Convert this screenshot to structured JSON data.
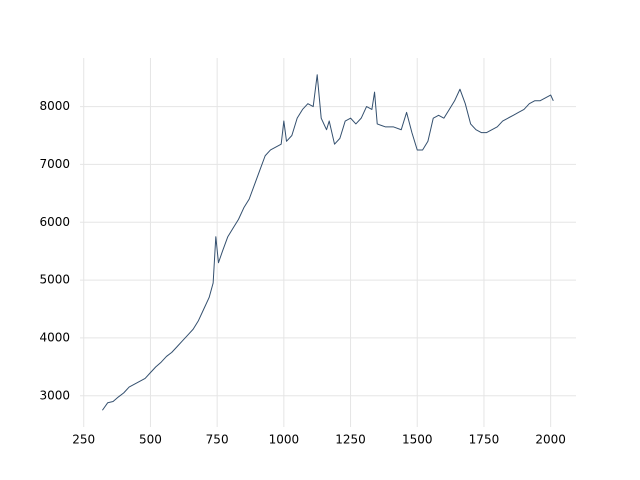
{
  "chart_data": {
    "type": "line",
    "x": [
      320,
      340,
      360,
      380,
      400,
      420,
      440,
      460,
      480,
      500,
      520,
      540,
      560,
      580,
      600,
      620,
      640,
      660,
      680,
      700,
      720,
      735,
      745,
      755,
      770,
      790,
      810,
      830,
      850,
      870,
      890,
      910,
      930,
      950,
      970,
      990,
      1000,
      1010,
      1030,
      1050,
      1070,
      1090,
      1110,
      1125,
      1140,
      1160,
      1170,
      1190,
      1210,
      1230,
      1250,
      1270,
      1290,
      1310,
      1330,
      1340,
      1350,
      1380,
      1410,
      1440,
      1460,
      1480,
      1500,
      1520,
      1540,
      1560,
      1580,
      1600,
      1620,
      1640,
      1660,
      1680,
      1700,
      1720,
      1740,
      1760,
      1780,
      1800,
      1820,
      1840,
      1860,
      1880,
      1900,
      1920,
      1940,
      1960,
      1980,
      2000,
      2010
    ],
    "series": [
      {
        "color": "#34506f",
        "values": [
          2750,
          2880,
          2900,
          2980,
          3050,
          3150,
          3200,
          3250,
          3300,
          3400,
          3500,
          3580,
          3680,
          3750,
          3850,
          3950,
          4050,
          4150,
          4300,
          4500,
          4700,
          4950,
          5750,
          5300,
          5500,
          5750,
          5900,
          6050,
          6250,
          6400,
          6650,
          6900,
          7150,
          7250,
          7300,
          7350,
          7750,
          7400,
          7500,
          7800,
          7950,
          8050,
          8000,
          8550,
          7800,
          7600,
          7750,
          7350,
          7450,
          7750,
          7800,
          7700,
          7800,
          8000,
          7950,
          8250,
          7700,
          7650,
          7650,
          7600,
          7900,
          7550,
          7250,
          7250,
          7400,
          7800,
          7850,
          7800,
          7950,
          8100,
          8300,
          8050,
          7700,
          7600,
          7550,
          7550,
          7600,
          7650,
          7750,
          7800,
          7850,
          7900,
          7950,
          8050,
          8100,
          8100,
          8150,
          8200,
          8100
        ]
      }
    ],
    "xlim": [
      236,
      2095
    ],
    "ylim": [
      2460,
      8840
    ],
    "xticks": [
      250,
      500,
      750,
      1000,
      1250,
      1500,
      1750,
      2000
    ],
    "yticks": [
      3000,
      4000,
      5000,
      6000,
      7000,
      8000
    ],
    "grid": true
  }
}
